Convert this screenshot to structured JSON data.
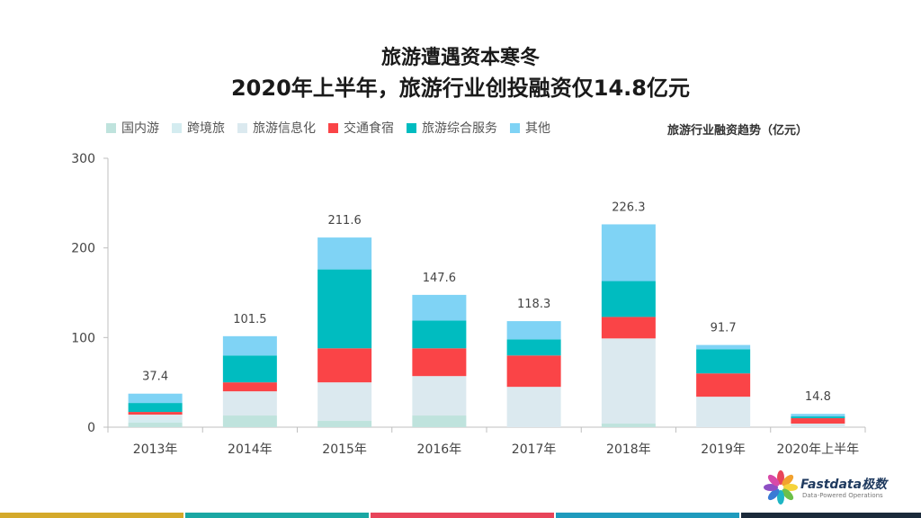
{
  "title": {
    "line1": "旅游遭遇资本寒冬",
    "line2": "2020年上半年，旅游行业创投融资仅14.8亿元"
  },
  "trend_label": "旅游行业融资趋势（亿元）",
  "logo": {
    "name": "Fastdata极数",
    "tagline": "Data-Powered Operations"
  },
  "colors": {
    "domestic": "#bfe3dd",
    "crossborder": "#d4ecf0",
    "info": "#dbe9ef",
    "transport": "#fa4447",
    "services": "#00bcc0",
    "other": "#7fd3f5",
    "bottom_bar": [
      "#d4a92a",
      "#1aa7a3",
      "#e8445a",
      "#1f9bbd",
      "#1b2a3a"
    ]
  },
  "chart_data": {
    "type": "bar",
    "stacked": true,
    "categories": [
      "2013年",
      "2014年",
      "2015年",
      "2016年",
      "2017年",
      "2018年",
      "2019年",
      "2020年上半年"
    ],
    "series": [
      {
        "name": "国内游",
        "color_key": "domestic",
        "values": [
          5,
          13,
          7,
          13,
          0,
          4,
          0,
          0
        ]
      },
      {
        "name": "跨境旅",
        "color_key": "crossborder",
        "values": [
          3,
          0,
          0,
          0,
          0,
          0,
          0,
          0
        ]
      },
      {
        "name": "旅游信息化",
        "color_key": "info",
        "values": [
          6,
          27,
          43,
          44,
          45,
          95,
          34,
          4
        ]
      },
      {
        "name": "交通食宿",
        "color_key": "transport",
        "values": [
          3,
          10,
          38,
          31,
          35,
          24,
          26,
          6
        ]
      },
      {
        "name": "旅游综合服务",
        "color_key": "services",
        "values": [
          10,
          30,
          88,
          31,
          18,
          40,
          27,
          2
        ]
      },
      {
        "name": "其他",
        "color_key": "other",
        "values": [
          10.4,
          21.5,
          35.6,
          28.6,
          20.3,
          63.3,
          4.7,
          2.8
        ]
      }
    ],
    "totals": [
      "37.4",
      "101.5",
      "211.6",
      "147.6",
      "118.3",
      "226.3",
      "91.7",
      "14.8"
    ],
    "y_ticks": [
      "0",
      "100",
      "200",
      "300"
    ],
    "ylim": [
      0,
      300
    ],
    "legend_position": "top-left"
  }
}
